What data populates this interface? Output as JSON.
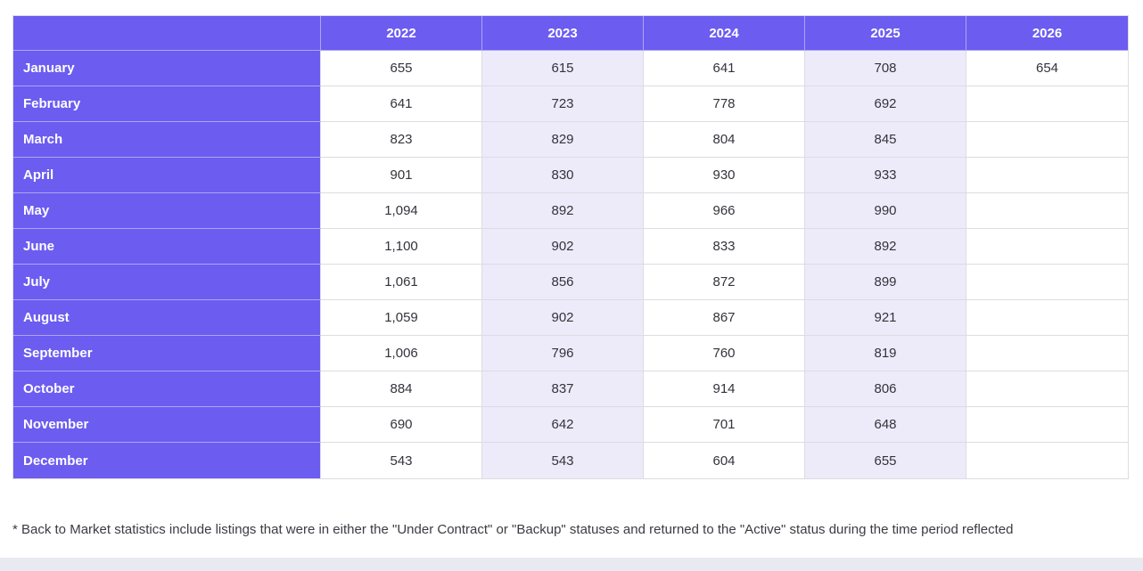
{
  "colors": {
    "accent": "#6c5cf0",
    "alt_column_bg": "#edebfa",
    "grid_line": "#dcdce2"
  },
  "table": {
    "corner_label": "",
    "columns": [
      "2022",
      "2023",
      "2024",
      "2025",
      "2026"
    ],
    "rows": [
      {
        "month": "January",
        "values": [
          "655",
          "615",
          "641",
          "708",
          "654"
        ]
      },
      {
        "month": "February",
        "values": [
          "641",
          "723",
          "778",
          "692",
          ""
        ]
      },
      {
        "month": "March",
        "values": [
          "823",
          "829",
          "804",
          "845",
          ""
        ]
      },
      {
        "month": "April",
        "values": [
          "901",
          "830",
          "930",
          "933",
          ""
        ]
      },
      {
        "month": "May",
        "values": [
          "1,094",
          "892",
          "966",
          "990",
          ""
        ]
      },
      {
        "month": "June",
        "values": [
          "1,100",
          "902",
          "833",
          "892",
          ""
        ]
      },
      {
        "month": "July",
        "values": [
          "1,061",
          "856",
          "872",
          "899",
          ""
        ]
      },
      {
        "month": "August",
        "values": [
          "1,059",
          "902",
          "867",
          "921",
          ""
        ]
      },
      {
        "month": "September",
        "values": [
          "1,006",
          "796",
          "760",
          "819",
          ""
        ]
      },
      {
        "month": "October",
        "values": [
          "884",
          "837",
          "914",
          "806",
          ""
        ]
      },
      {
        "month": "November",
        "values": [
          "690",
          "642",
          "701",
          "648",
          ""
        ]
      },
      {
        "month": "December",
        "values": [
          "543",
          "543",
          "604",
          "655",
          ""
        ]
      }
    ]
  },
  "footnote": "* Back to Market statistics include listings that were in either the \"Under Contract\" or \"Backup\" statuses and returned to the \"Active\" status during the time period reflected",
  "chart_data": {
    "type": "table",
    "title": "Back to Market statistics by month and year",
    "categories": [
      "January",
      "February",
      "March",
      "April",
      "May",
      "June",
      "July",
      "August",
      "September",
      "October",
      "November",
      "December"
    ],
    "series": [
      {
        "name": "2022",
        "values": [
          655,
          641,
          823,
          901,
          1094,
          1100,
          1061,
          1059,
          1006,
          884,
          690,
          543
        ]
      },
      {
        "name": "2023",
        "values": [
          615,
          723,
          829,
          830,
          892,
          902,
          856,
          902,
          796,
          837,
          642,
          543
        ]
      },
      {
        "name": "2024",
        "values": [
          641,
          778,
          804,
          930,
          966,
          833,
          872,
          867,
          760,
          914,
          701,
          604
        ]
      },
      {
        "name": "2025",
        "values": [
          708,
          692,
          845,
          933,
          990,
          892,
          899,
          921,
          819,
          806,
          648,
          655
        ]
      },
      {
        "name": "2026",
        "values": [
          654,
          null,
          null,
          null,
          null,
          null,
          null,
          null,
          null,
          null,
          null,
          null
        ]
      }
    ]
  }
}
